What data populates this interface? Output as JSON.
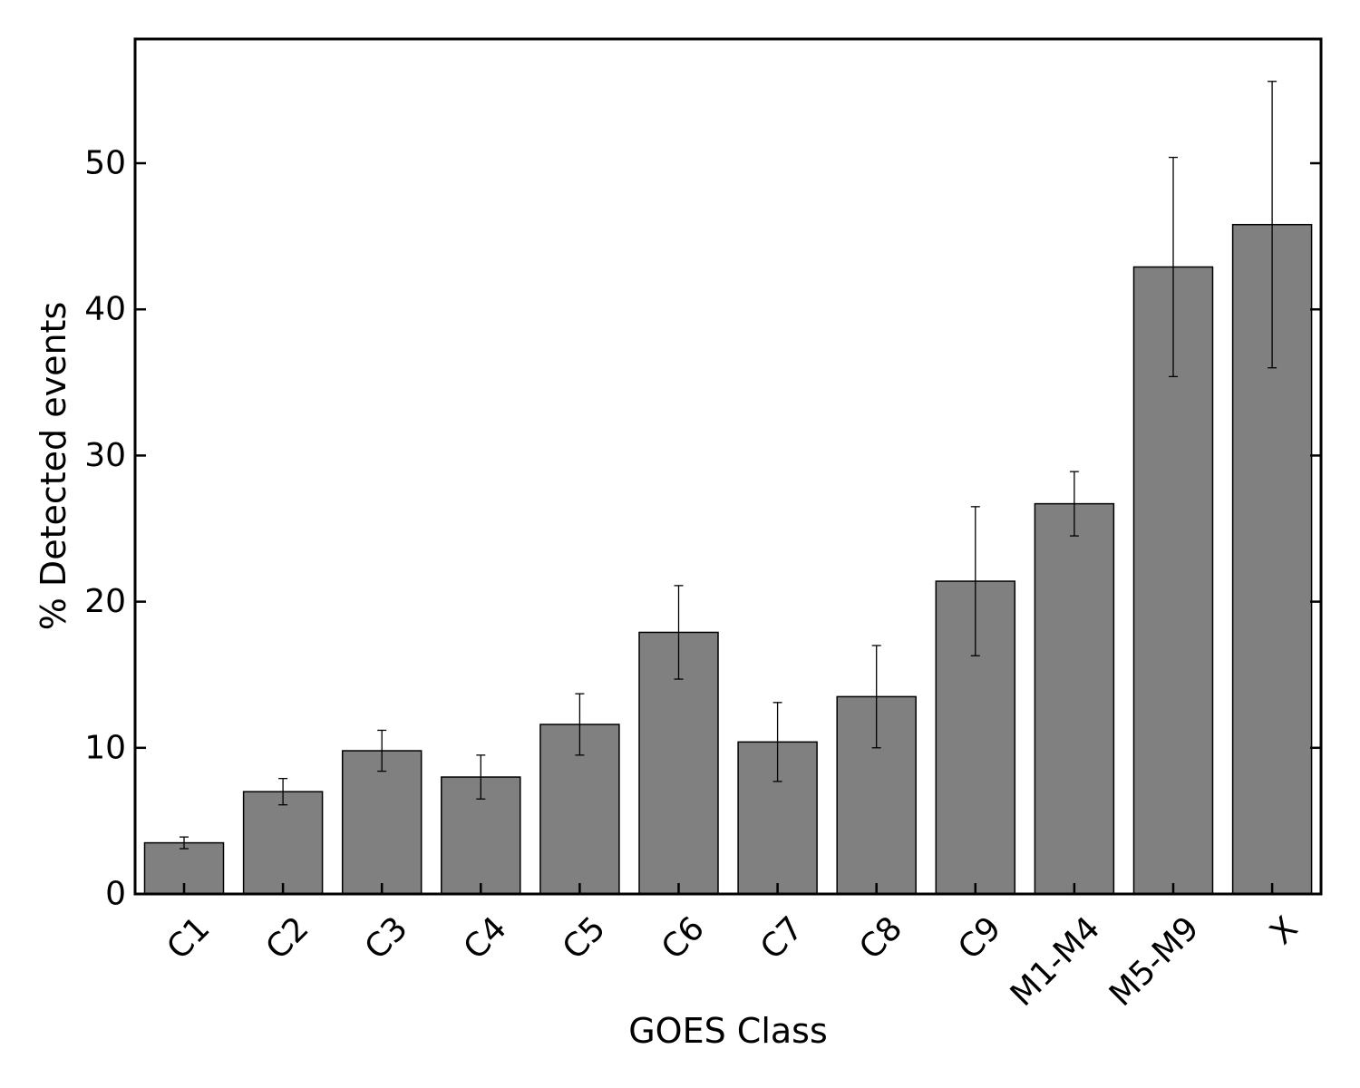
{
  "chart_data": {
    "type": "bar",
    "xlabel": "GOES Class",
    "ylabel": "% Detected events",
    "categories": [
      "C1",
      "C2",
      "C3",
      "C4",
      "C5",
      "C6",
      "C7",
      "C8",
      "C9",
      "M1-M4",
      "M5-M9",
      "X"
    ],
    "values": [
      3.5,
      7.0,
      9.8,
      8.0,
      11.6,
      17.9,
      10.4,
      13.5,
      21.4,
      26.7,
      42.9,
      45.8
    ],
    "errors": [
      0.4,
      0.9,
      1.4,
      1.5,
      2.1,
      3.2,
      2.7,
      3.5,
      5.1,
      2.2,
      7.5,
      9.8
    ],
    "ylim": [
      0,
      58.5
    ],
    "yticks": [
      0,
      10,
      20,
      30,
      40,
      50
    ],
    "grid": false,
    "colors": {
      "bar_fill": "#808080",
      "bar_edge": "#000000",
      "error_bar": "#000000"
    }
  }
}
